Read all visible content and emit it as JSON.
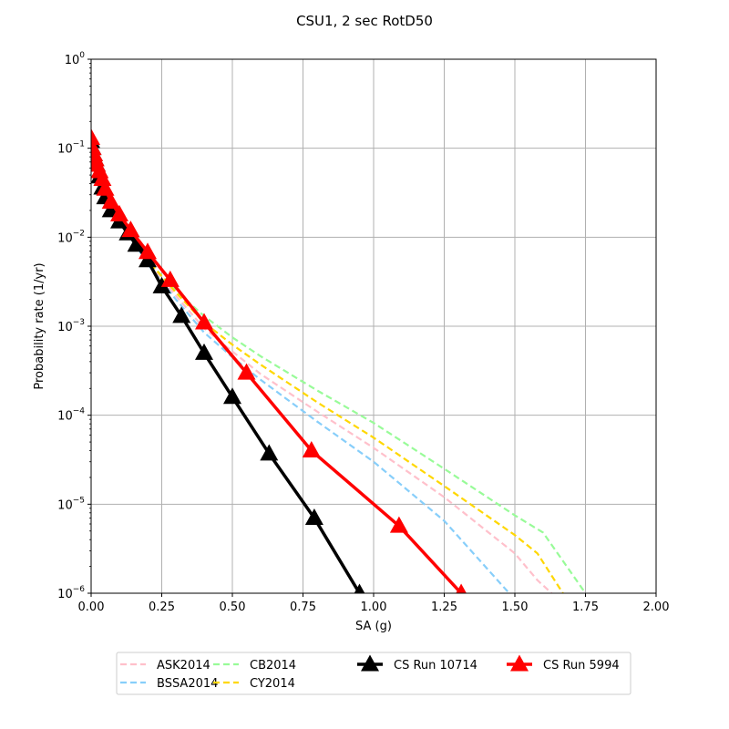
{
  "chart_data": {
    "type": "line",
    "title": "CSU1, 2 sec RotD50",
    "xlabel": "SA (g)",
    "ylabel": "Probability rate (1/yr)",
    "xlim": [
      0,
      2.0
    ],
    "ylim": [
      1e-06,
      1
    ],
    "yscale": "log",
    "grid": true,
    "legend_position": "bottom-center",
    "x_ticks": [
      "0.00",
      "0.25",
      "0.50",
      "0.75",
      "1.00",
      "1.25",
      "1.50",
      "1.75",
      "2.00"
    ],
    "y_ticks": [
      {
        "value": 1e-06,
        "base": "10",
        "exp": "−6"
      },
      {
        "value": 1e-05,
        "base": "10",
        "exp": "−5"
      },
      {
        "value": 0.0001,
        "base": "10",
        "exp": "−4"
      },
      {
        "value": 0.001,
        "base": "10",
        "exp": "−3"
      },
      {
        "value": 0.01,
        "base": "10",
        "exp": "−2"
      },
      {
        "value": 0.1,
        "base": "10",
        "exp": "−1"
      },
      {
        "value": 1,
        "base": "10",
        "exp": "0"
      }
    ],
    "series": [
      {
        "name": "ASK2014",
        "color": "#ffc0cb",
        "style": "dashed",
        "marker": "none",
        "x": [
          0.0,
          0.02,
          0.05,
          0.1,
          0.15,
          0.2,
          0.3,
          0.4,
          0.5,
          0.6,
          0.8,
          1.0,
          1.25,
          1.5,
          1.58,
          1.63
        ],
        "y": [
          0.13,
          0.075,
          0.04,
          0.018,
          0.009,
          0.0052,
          0.0022,
          0.00095,
          0.00052,
          0.00029,
          0.00011,
          4.3e-05,
          1.2e-05,
          2.8e-06,
          1.4e-06,
          1e-06
        ]
      },
      {
        "name": "BSSA2014",
        "color": "#87cefa",
        "style": "dashed",
        "marker": "none",
        "x": [
          0.0,
          0.02,
          0.05,
          0.1,
          0.15,
          0.2,
          0.3,
          0.4,
          0.5,
          0.6,
          0.8,
          1.0,
          1.25,
          1.48
        ],
        "y": [
          0.13,
          0.075,
          0.04,
          0.018,
          0.009,
          0.005,
          0.002,
          0.00085,
          0.00045,
          0.00025,
          8.5e-05,
          3e-05,
          6.5e-06,
          1e-06
        ]
      },
      {
        "name": "CB2014",
        "color": "#98fb98",
        "style": "dashed",
        "marker": "none",
        "x": [
          0.0,
          0.02,
          0.05,
          0.1,
          0.15,
          0.2,
          0.3,
          0.4,
          0.5,
          0.6,
          0.8,
          1.0,
          1.25,
          1.5,
          1.6,
          1.75
        ],
        "y": [
          0.13,
          0.075,
          0.04,
          0.018,
          0.009,
          0.0055,
          0.0025,
          0.0013,
          0.00075,
          0.00046,
          0.00019,
          8.2e-05,
          2.5e-05,
          7.5e-06,
          4.8e-06,
          1e-06
        ]
      },
      {
        "name": "CY2014",
        "color": "#ffd700",
        "style": "dashed",
        "marker": "none",
        "x": [
          0.0,
          0.02,
          0.05,
          0.1,
          0.15,
          0.2,
          0.3,
          0.4,
          0.5,
          0.6,
          0.8,
          1.0,
          1.25,
          1.5,
          1.58,
          1.67
        ],
        "y": [
          0.13,
          0.075,
          0.04,
          0.018,
          0.009,
          0.0055,
          0.0024,
          0.0011,
          0.00062,
          0.00037,
          0.00014,
          5.6e-05,
          1.6e-05,
          4.5e-06,
          2.8e-06,
          1e-06
        ]
      },
      {
        "name": "CS Run 10714",
        "color": "#000000",
        "style": "solid",
        "marker": "triangle",
        "x": [
          0.0,
          0.005,
          0.01,
          0.015,
          0.02,
          0.03,
          0.04,
          0.05,
          0.07,
          0.1,
          0.13,
          0.16,
          0.2,
          0.25,
          0.32,
          0.4,
          0.5,
          0.63,
          0.79,
          0.95
        ],
        "y": [
          0.12,
          0.1,
          0.085,
          0.075,
          0.065,
          0.048,
          0.036,
          0.028,
          0.02,
          0.015,
          0.011,
          0.0082,
          0.0055,
          0.0028,
          0.0013,
          0.0005,
          0.00016,
          3.7e-05,
          7e-06,
          1e-06
        ]
      },
      {
        "name": "CS Run 5994",
        "color": "#ff0000",
        "style": "solid",
        "marker": "triangle",
        "x": [
          0.0,
          0.005,
          0.01,
          0.015,
          0.02,
          0.03,
          0.04,
          0.05,
          0.07,
          0.1,
          0.14,
          0.2,
          0.28,
          0.4,
          0.55,
          0.78,
          1.09,
          1.31
        ],
        "y": [
          0.13,
          0.1,
          0.085,
          0.075,
          0.065,
          0.055,
          0.045,
          0.035,
          0.025,
          0.018,
          0.012,
          0.0068,
          0.0033,
          0.0011,
          0.0003,
          4e-05,
          5.7e-06,
          1e-06
        ]
      }
    ]
  }
}
